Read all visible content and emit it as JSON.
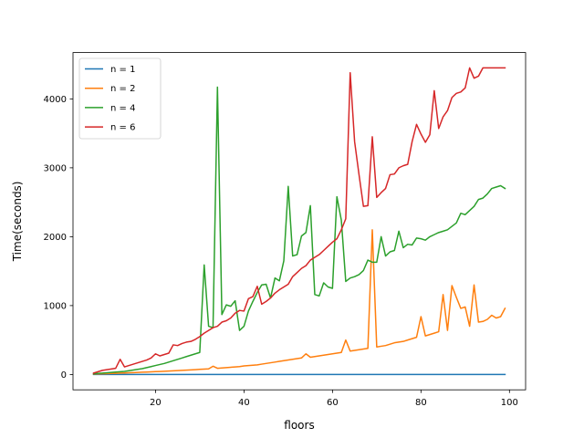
{
  "chart_data": {
    "type": "line",
    "xlabel": "floors",
    "ylabel": "Time(seconds)",
    "xlim": [
      1.35,
      103.65
    ],
    "ylim": [
      -222.5,
      4672.5
    ],
    "xticks": [
      20,
      40,
      60,
      80,
      100
    ],
    "yticks": [
      0,
      1000,
      2000,
      3000,
      4000
    ],
    "grid": false,
    "legend_position": "top-left",
    "x": [
      6,
      7,
      8,
      9,
      10,
      11,
      12,
      13,
      14,
      15,
      16,
      17,
      18,
      19,
      20,
      21,
      22,
      23,
      24,
      25,
      26,
      27,
      28,
      29,
      30,
      31,
      32,
      33,
      34,
      35,
      36,
      37,
      38,
      39,
      40,
      41,
      42,
      43,
      44,
      45,
      46,
      47,
      48,
      49,
      50,
      51,
      52,
      53,
      54,
      55,
      56,
      57,
      58,
      59,
      60,
      61,
      62,
      63,
      64,
      65,
      66,
      67,
      68,
      69,
      70,
      71,
      72,
      73,
      74,
      75,
      76,
      77,
      78,
      79,
      80,
      81,
      82,
      83,
      84,
      85,
      86,
      87,
      88,
      89,
      90,
      91,
      92,
      93,
      94,
      95,
      96,
      97,
      98,
      99
    ],
    "series": [
      {
        "name": "n = 1",
        "color": "#1f77b4",
        "values": [
          0,
          0,
          0,
          0,
          0,
          0,
          0,
          0,
          0,
          0,
          0,
          0,
          0,
          0,
          0,
          0,
          0,
          0,
          0,
          0,
          0,
          0,
          0,
          0,
          0,
          0,
          0,
          0,
          0,
          0,
          0,
          0,
          0,
          0,
          0,
          0,
          0,
          0,
          0,
          0,
          0,
          0,
          0,
          0,
          0,
          0,
          0,
          0,
          0,
          0,
          0,
          0,
          0,
          0,
          0,
          0,
          0,
          0,
          0,
          0,
          0,
          0,
          0,
          0,
          0,
          0,
          0,
          0,
          0,
          0,
          0,
          0,
          0,
          0,
          0,
          0,
          0,
          0,
          0,
          0,
          0,
          0,
          0,
          0,
          0,
          0,
          0,
          0,
          0,
          0,
          0,
          0,
          0,
          0
        ]
      },
      {
        "name": "n = 2",
        "color": "#ff7f0e",
        "values": [
          5,
          8,
          10,
          12,
          15,
          17,
          20,
          22,
          25,
          27,
          30,
          33,
          35,
          38,
          41,
          44,
          47,
          50,
          53,
          56,
          60,
          63,
          67,
          70,
          74,
          78,
          82,
          120,
          90,
          95,
          100,
          105,
          110,
          115,
          125,
          130,
          135,
          140,
          150,
          160,
          170,
          180,
          190,
          200,
          210,
          220,
          230,
          240,
          300,
          250,
          260,
          270,
          280,
          290,
          300,
          310,
          320,
          500,
          340,
          350,
          360,
          370,
          380,
          2100,
          400,
          410,
          420,
          440,
          460,
          470,
          480,
          500,
          520,
          540,
          840,
          560,
          580,
          600,
          620,
          1160,
          640,
          1290,
          1120,
          960,
          980,
          700,
          1300,
          760,
          770,
          800,
          860,
          820,
          840,
          960
        ]
      },
      {
        "name": "n = 4",
        "color": "#2ca02c",
        "values": [
          10,
          15,
          20,
          25,
          30,
          35,
          40,
          45,
          55,
          65,
          75,
          85,
          100,
          115,
          130,
          145,
          160,
          180,
          200,
          220,
          240,
          260,
          280,
          300,
          320,
          1590,
          700,
          680,
          4170,
          870,
          1010,
          990,
          1070,
          640,
          700,
          920,
          1060,
          1190,
          1300,
          1310,
          1110,
          1400,
          1360,
          1650,
          2730,
          1720,
          1740,
          2010,
          2060,
          2450,
          1160,
          1140,
          1330,
          1270,
          1250,
          2580,
          2240,
          1350,
          1400,
          1420,
          1450,
          1510,
          1660,
          1630,
          1630,
          2000,
          1720,
          1780,
          1800,
          2080,
          1840,
          1890,
          1880,
          1980,
          1970,
          1950,
          2000,
          2030,
          2060,
          2080,
          2100,
          2150,
          2200,
          2340,
          2320,
          2380,
          2440,
          2540,
          2560,
          2620,
          2700,
          2720,
          2740,
          2700
        ]
      },
      {
        "name": "n = 6",
        "color": "#d62728",
        "values": [
          20,
          40,
          60,
          70,
          80,
          90,
          220,
          110,
          130,
          150,
          170,
          190,
          210,
          240,
          300,
          270,
          290,
          310,
          430,
          420,
          450,
          470,
          480,
          510,
          550,
          600,
          640,
          680,
          700,
          760,
          780,
          820,
          890,
          930,
          920,
          1100,
          1130,
          1280,
          1020,
          1060,
          1110,
          1180,
          1230,
          1270,
          1310,
          1420,
          1480,
          1540,
          1580,
          1660,
          1700,
          1740,
          1800,
          1860,
          1920,
          1970,
          2100,
          2260,
          4380,
          3380,
          2900,
          2440,
          2450,
          3450,
          2570,
          2640,
          2700,
          2900,
          2910,
          3000,
          3030,
          3050,
          3380,
          3630,
          3490,
          3370,
          3480,
          4120,
          3570,
          3740,
          3830,
          4020,
          4080,
          4100,
          4160,
          4450,
          4300,
          4330,
          4450,
          4450,
          4450,
          4450,
          4450,
          4450
        ]
      }
    ]
  }
}
